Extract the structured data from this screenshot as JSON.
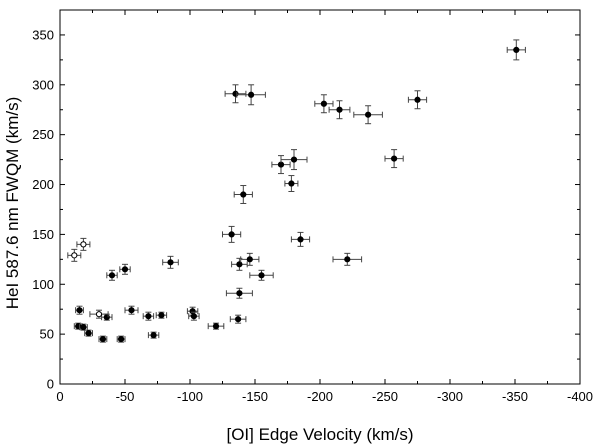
{
  "chart_data": {
    "type": "scatter",
    "xlabel": "[OI] Edge Velocity  (km/s)",
    "ylabel": "HeI 587.6 nm FWQM  (km/s)",
    "xlim": [
      0,
      -400
    ],
    "ylim": [
      0,
      375
    ],
    "xticks": [
      0,
      -50,
      -100,
      -150,
      -200,
      -250,
      -300,
      -350,
      -400
    ],
    "yticks": [
      0,
      50,
      100,
      150,
      200,
      250,
      300,
      350
    ],
    "grid": false,
    "colors": {
      "marker": "#000000",
      "errorbar": "#444444",
      "open_fill": "#ffffff"
    },
    "series": [
      {
        "marker": "filled-circle",
        "points": [
          {
            "x": -15,
            "y": 74,
            "xerr": 3,
            "yerr": 4
          },
          {
            "x": -14,
            "y": 58,
            "xerr": 3,
            "yerr": 3
          },
          {
            "x": -18,
            "y": 57,
            "xerr": 3,
            "yerr": 3
          },
          {
            "x": -22,
            "y": 51,
            "xerr": 3,
            "yerr": 3
          },
          {
            "x": -33,
            "y": 45,
            "xerr": 3,
            "yerr": 3
          },
          {
            "x": -36,
            "y": 67,
            "xerr": 4,
            "yerr": 3
          },
          {
            "x": -40,
            "y": 109,
            "xerr": 4,
            "yerr": 5
          },
          {
            "x": -47,
            "y": 45,
            "xerr": 3,
            "yerr": 3
          },
          {
            "x": -50,
            "y": 115,
            "xerr": 4,
            "yerr": 5
          },
          {
            "x": -55,
            "y": 74,
            "xerr": 5,
            "yerr": 4
          },
          {
            "x": -68,
            "y": 68,
            "xerr": 4,
            "yerr": 4
          },
          {
            "x": -72,
            "y": 49,
            "xerr": 4,
            "yerr": 3
          },
          {
            "x": -78,
            "y": 69,
            "xerr": 4,
            "yerr": 3
          },
          {
            "x": -85,
            "y": 122,
            "xerr": 6,
            "yerr": 6
          },
          {
            "x": -102,
            "y": 73,
            "xerr": 4,
            "yerr": 4
          },
          {
            "x": -103,
            "y": 68,
            "xerr": 4,
            "yerr": 4
          },
          {
            "x": -120,
            "y": 58,
            "xerr": 6,
            "yerr": 3
          },
          {
            "x": -132,
            "y": 150,
            "xerr": 7,
            "yerr": 8
          },
          {
            "x": -135,
            "y": 291,
            "xerr": 8,
            "yerr": 9
          },
          {
            "x": -137,
            "y": 65,
            "xerr": 6,
            "yerr": 4
          },
          {
            "x": -138,
            "y": 91,
            "xerr": 10,
            "yerr": 5
          },
          {
            "x": -138,
            "y": 120,
            "xerr": 6,
            "yerr": 6
          },
          {
            "x": -141,
            "y": 190,
            "xerr": 7,
            "yerr": 9
          },
          {
            "x": -146,
            "y": 125,
            "xerr": 7,
            "yerr": 6
          },
          {
            "x": -147,
            "y": 290,
            "xerr": 11,
            "yerr": 10
          },
          {
            "x": -155,
            "y": 109,
            "xerr": 9,
            "yerr": 5
          },
          {
            "x": -170,
            "y": 220,
            "xerr": 7,
            "yerr": 9
          },
          {
            "x": -178,
            "y": 201,
            "xerr": 5,
            "yerr": 8
          },
          {
            "x": -180,
            "y": 225,
            "xerr": 10,
            "yerr": 10
          },
          {
            "x": -185,
            "y": 145,
            "xerr": 7,
            "yerr": 7
          },
          {
            "x": -203,
            "y": 281,
            "xerr": 7,
            "yerr": 9
          },
          {
            "x": -215,
            "y": 275,
            "xerr": 8,
            "yerr": 9
          },
          {
            "x": -221,
            "y": 125,
            "xerr": 11,
            "yerr": 6
          },
          {
            "x": -237,
            "y": 270,
            "xerr": 11,
            "yerr": 9
          },
          {
            "x": -257,
            "y": 226,
            "xerr": 7,
            "yerr": 9
          },
          {
            "x": -275,
            "y": 285,
            "xerr": 7,
            "yerr": 9
          },
          {
            "x": -351,
            "y": 335,
            "xerr": 7,
            "yerr": 10
          }
        ]
      },
      {
        "marker": "open-circle",
        "points": [
          {
            "x": -11,
            "y": 129,
            "xerr": 5,
            "yerr": 6
          },
          {
            "x": -18,
            "y": 140,
            "xerr": 5,
            "yerr": 6
          },
          {
            "x": -30,
            "y": 70,
            "xerr": 7,
            "yerr": 4
          }
        ]
      }
    ]
  }
}
